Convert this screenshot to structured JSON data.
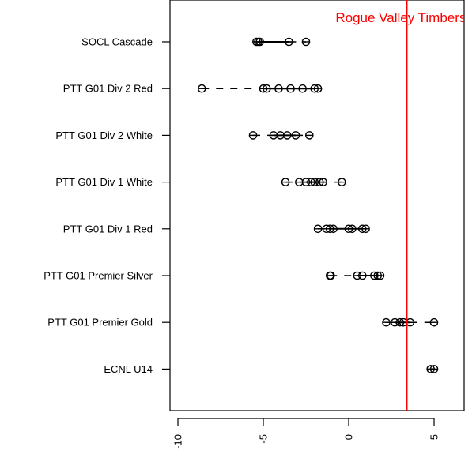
{
  "chart_data": {
    "type": "scatter",
    "title": "",
    "xlabel": "",
    "ylabel": "",
    "xlim": [
      -10.5,
      6.5
    ],
    "xticks": [
      -10,
      -5,
      0,
      5
    ],
    "xtick_labels": [
      "-10",
      "-5",
      "0",
      "5"
    ],
    "reference_line": {
      "x": 3.4,
      "label": "Rogue Valley Timbers F",
      "color": "#ff0000"
    },
    "categories": [
      "SOCL Cascade",
      "PTT G01 Div 2 Red",
      "PTT G01 Div 2 White",
      "PTT G01 Div 1 White",
      "PTT G01 Div 1 Red",
      "PTT G01 Premier Silver",
      "PTT G01 Premier Gold",
      "ECNL U14"
    ],
    "series": [
      {
        "category": "SOCL Cascade",
        "values": [
          -5.4,
          -5.3,
          -5.2,
          -3.5,
          -2.5
        ],
        "box": [
          -5.3,
          -3.5
        ],
        "whiskers": [
          -5.4,
          -2.5
        ]
      },
      {
        "category": "PTT G01 Div 2 Red",
        "values": [
          -8.6,
          -5.0,
          -4.8,
          -4.1,
          -3.4,
          -2.7,
          -2.0,
          -1.8
        ],
        "box": [
          -5.0,
          -2.0
        ],
        "whiskers": [
          -8.6,
          -1.8
        ]
      },
      {
        "category": "PTT G01 Div 2 White",
        "values": [
          -5.6,
          -4.4,
          -4.0,
          -3.6,
          -3.1,
          -2.3
        ],
        "box": [
          -4.4,
          -3.1
        ],
        "whiskers": [
          -5.6,
          -2.3
        ]
      },
      {
        "category": "PTT G01 Div 1 White",
        "values": [
          -3.7,
          -2.9,
          -2.5,
          -2.2,
          -2.0,
          -1.7,
          -1.5,
          -0.4
        ],
        "box": [
          -2.5,
          -1.7
        ],
        "whiskers": [
          -3.7,
          -0.4
        ]
      },
      {
        "category": "PTT G01 Div 1 Red",
        "values": [
          -1.8,
          -1.3,
          -1.1,
          -0.9,
          0.0,
          0.2,
          0.8,
          1.0
        ],
        "box": [
          -1.1,
          0.8
        ],
        "whiskers": [
          -1.8,
          1.0
        ]
      },
      {
        "category": "PTT G01 Premier Silver",
        "values": [
          -1.1,
          -1.05,
          0.5,
          0.8,
          1.5,
          1.7,
          1.85
        ],
        "box": [
          0.5,
          1.7
        ],
        "whiskers": [
          -1.1,
          1.85
        ]
      },
      {
        "category": "PTT G01 Premier Gold",
        "values": [
          2.2,
          2.7,
          3.0,
          3.2,
          3.6,
          5.0
        ],
        "box": [
          2.7,
          3.6
        ],
        "whiskers": [
          2.2,
          5.0
        ]
      },
      {
        "category": "ECNL U14",
        "values": [
          4.8,
          5.0
        ],
        "box": [
          4.8,
          5.0
        ],
        "whiskers": [
          4.8,
          5.0
        ]
      }
    ]
  }
}
